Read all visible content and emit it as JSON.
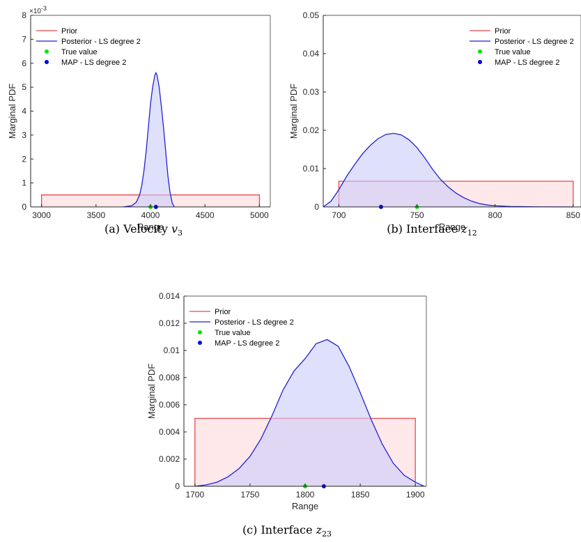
{
  "chart_data": [
    {
      "type": "area",
      "panel_id": "a",
      "caption": {
        "prefix": "(a) Velocity ",
        "symbol": "v",
        "subscript": "3"
      },
      "xlabel": "Range",
      "ylabel": "Marginal PDF",
      "y_exponent": {
        "base": "×10",
        "power": "-3"
      },
      "xlim": [
        2900,
        5100
      ],
      "ylim": [
        0,
        8
      ],
      "xticks": [
        3000,
        3500,
        4000,
        4500,
        5000
      ],
      "yticks": [
        0,
        1,
        2,
        3,
        4,
        5,
        6,
        7,
        8
      ],
      "xtick_labels": [
        "3000",
        "3500",
        "4000",
        "4500",
        "5000"
      ],
      "ytick_labels": [
        "0",
        "1",
        "2",
        "3",
        "4",
        "5",
        "6",
        "7",
        "8"
      ],
      "legend_location": "top-left",
      "series": [
        {
          "name": "Prior",
          "kind": "fill-line",
          "color": "#e8474a",
          "fill": "#ffd8dc",
          "x": [
            3000,
            3000,
            5000,
            5000
          ],
          "y": [
            0,
            0.5,
            0.5,
            0
          ]
        },
        {
          "name": "Posterior - LS degree 2",
          "kind": "fill-line",
          "color": "#1f22d6",
          "fill": "#c9ccf8",
          "x": [
            3750,
            3830,
            3870,
            3900,
            3920,
            3940,
            3960,
            3980,
            4000,
            4020,
            4040,
            4050,
            4060,
            4080,
            4100,
            4120,
            4140,
            4160,
            4180,
            4200,
            4220
          ],
          "y": [
            0,
            0.05,
            0.2,
            0.5,
            0.9,
            1.5,
            2.3,
            3.3,
            4.3,
            5.0,
            5.5,
            5.6,
            5.5,
            5.0,
            4.2,
            3.3,
            2.3,
            1.3,
            0.6,
            0.15,
            0
          ]
        },
        {
          "name": "True value",
          "kind": "marker",
          "color": "#00e600",
          "x": [
            4000
          ],
          "y": [
            0
          ]
        },
        {
          "name": "MAP - LS degree 2",
          "kind": "marker",
          "color": "#0000ee",
          "x": [
            4050
          ],
          "y": [
            0
          ]
        }
      ]
    },
    {
      "type": "area",
      "panel_id": "b",
      "caption": {
        "prefix": "(b) Interface ",
        "symbol": "z",
        "subscript": "12"
      },
      "xlabel": "Range",
      "ylabel": "Marginal PDF",
      "xlim": [
        690,
        855
      ],
      "ylim": [
        0,
        0.05
      ],
      "xticks": [
        700,
        750,
        800,
        850
      ],
      "yticks": [
        0,
        0.01,
        0.02,
        0.03,
        0.04,
        0.05
      ],
      "xtick_labels": [
        "700",
        "750",
        "800",
        "850"
      ],
      "ytick_labels": [
        "0",
        "0.01",
        "0.02",
        "0.03",
        "0.04",
        "0.05"
      ],
      "legend_location": "top-right",
      "series": [
        {
          "name": "Prior",
          "kind": "fill-line",
          "color": "#e8474a",
          "fill": "#ffd8dc",
          "x": [
            700,
            700,
            850,
            850
          ],
          "y": [
            0,
            0.0067,
            0.0067,
            0
          ]
        },
        {
          "name": "Posterior - LS degree 2",
          "kind": "fill-line",
          "color": "#1f22d6",
          "fill": "#c9ccf8",
          "x": [
            690,
            695,
            700,
            705,
            710,
            715,
            720,
            725,
            730,
            735,
            740,
            745,
            750,
            755,
            760,
            765,
            770,
            775,
            780,
            785,
            790,
            795,
            800,
            810,
            820,
            830,
            850
          ],
          "y": [
            0,
            0.0015,
            0.0045,
            0.008,
            0.011,
            0.0138,
            0.016,
            0.0178,
            0.0189,
            0.0192,
            0.0188,
            0.0175,
            0.0155,
            0.0128,
            0.0098,
            0.0072,
            0.0052,
            0.0036,
            0.0024,
            0.0015,
            0.0009,
            0.0005,
            0.0003,
            0.0001,
            5e-05,
            2e-05,
            0
          ]
        },
        {
          "name": "True value",
          "kind": "marker",
          "color": "#00e600",
          "x": [
            750
          ],
          "y": [
            0
          ]
        },
        {
          "name": "MAP - LS degree 2",
          "kind": "marker",
          "color": "#0000ee",
          "x": [
            727
          ],
          "y": [
            0
          ]
        }
      ]
    },
    {
      "type": "area",
      "panel_id": "c",
      "caption": {
        "prefix": "(c) Interface ",
        "symbol": "z",
        "subscript": "23"
      },
      "xlabel": "Range",
      "ylabel": "Marginal PDF",
      "xlim": [
        1690,
        1910
      ],
      "ylim": [
        0,
        0.014
      ],
      "xticks": [
        1700,
        1750,
        1800,
        1850,
        1900
      ],
      "yticks": [
        0,
        0.002,
        0.004,
        0.006,
        0.008,
        0.01,
        0.012,
        0.014
      ],
      "xtick_labels": [
        "1700",
        "1750",
        "1800",
        "1850",
        "1900"
      ],
      "ytick_labels": [
        "0",
        "0.002",
        "0.004",
        "0.006",
        "0.008",
        "0.01",
        "0.012",
        "0.014"
      ],
      "legend_location": "top-left",
      "series": [
        {
          "name": "Prior",
          "kind": "fill-line",
          "color": "#e8474a",
          "fill": "#ffd8dc",
          "x": [
            1700,
            1700,
            1900,
            1900
          ],
          "y": [
            0,
            0.005,
            0.005,
            0
          ]
        },
        {
          "name": "Posterior - LS degree 2",
          "kind": "fill-line",
          "color": "#1f22d6",
          "fill": "#c9ccf8",
          "x": [
            1700,
            1710,
            1720,
            1730,
            1740,
            1750,
            1760,
            1770,
            1780,
            1790,
            1800,
            1810,
            1820,
            1830,
            1840,
            1850,
            1860,
            1870,
            1880,
            1890,
            1900,
            1908
          ],
          "y": [
            0,
            0.0001,
            0.0003,
            0.0007,
            0.0013,
            0.0022,
            0.0035,
            0.0052,
            0.0071,
            0.0085,
            0.0094,
            0.0105,
            0.0108,
            0.0103,
            0.0088,
            0.0069,
            0.0049,
            0.0031,
            0.0017,
            0.0008,
            0.0003,
            0
          ]
        },
        {
          "name": "True value",
          "kind": "marker",
          "color": "#00e600",
          "x": [
            1800
          ],
          "y": [
            0
          ]
        },
        {
          "name": "MAP - LS degree 2",
          "kind": "marker",
          "color": "#0000ee",
          "x": [
            1817
          ],
          "y": [
            0
          ]
        }
      ]
    }
  ]
}
